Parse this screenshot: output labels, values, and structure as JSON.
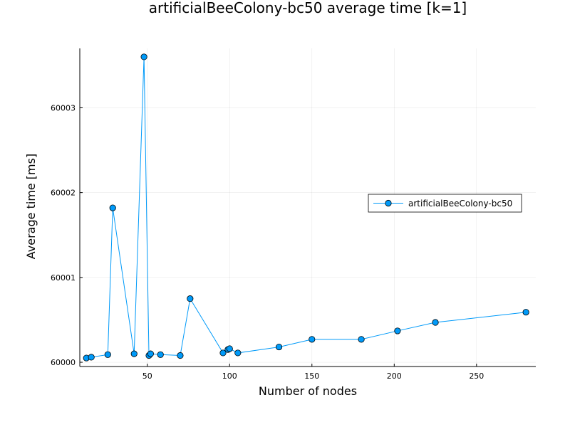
{
  "chart_data": {
    "type": "line",
    "title": "artificialBeeColony-bc50 average time [k=1]",
    "xlabel": "Number of nodes",
    "ylabel": "Average time [ms]",
    "xlim": [
      9,
      286
    ],
    "ylim": [
      59999.95,
      60003.7
    ],
    "x_ticks": [
      50,
      100,
      150,
      200,
      250
    ],
    "y_ticks": [
      60000,
      60001,
      60002,
      60003
    ],
    "grid": true,
    "legend_position": "right",
    "series": [
      {
        "name": "artificialBeeColony-bc50",
        "color": "#009af9",
        "x": [
          13,
          16,
          26,
          29,
          42,
          48,
          51,
          52,
          58,
          70,
          76,
          96,
          99,
          100,
          105,
          130,
          150,
          180,
          202,
          225,
          280
        ],
        "y": [
          60000.05,
          60000.06,
          60000.09,
          60001.82,
          60000.1,
          60003.6,
          60000.08,
          60000.1,
          60000.09,
          60000.08,
          60000.75,
          60000.11,
          60000.15,
          60000.16,
          60000.11,
          60000.18,
          60000.27,
          60000.27,
          60000.37,
          60000.47,
          60000.59
        ]
      }
    ]
  }
}
